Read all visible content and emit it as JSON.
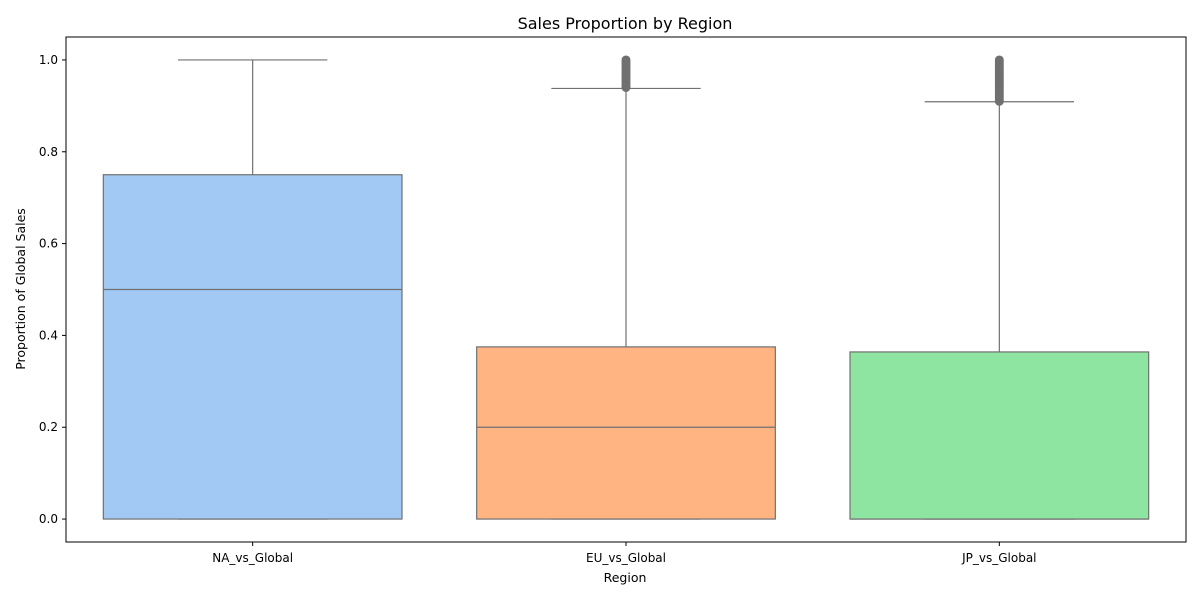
{
  "chart_data": {
    "type": "box",
    "title": "Sales Proportion by Region",
    "xlabel": "Region",
    "ylabel": "Proportion of Global Sales",
    "ylim": [
      -0.05,
      1.05
    ],
    "yticks": [
      0.0,
      0.2,
      0.4,
      0.6,
      0.8,
      1.0
    ],
    "ytick_labels": [
      "0.0",
      "0.2",
      "0.4",
      "0.6",
      "0.8",
      "1.0"
    ],
    "categories": [
      "NA_vs_Global",
      "EU_vs_Global",
      "JP_vs_Global"
    ],
    "grid": false,
    "colors": {
      "NA_vs_Global": "#a1c9f4",
      "EU_vs_Global": "#ffb482",
      "JP_vs_Global": "#8de5a1",
      "box_edge": "#707070",
      "axis": "#000000"
    },
    "boxes": [
      {
        "category": "NA_vs_Global",
        "whisker_low": 0.0,
        "q1": 0.0,
        "median": 0.5,
        "q3": 0.75,
        "whisker_high": 1.0,
        "outliers": []
      },
      {
        "category": "EU_vs_Global",
        "whisker_low": 0.0,
        "q1": 0.0,
        "median": 0.2,
        "q3": 0.375,
        "whisker_high": 0.938,
        "outliers": [
          0.94,
          0.945,
          0.95,
          0.955,
          0.96,
          0.965,
          0.97,
          0.975,
          0.98,
          0.985,
          0.99,
          0.995,
          1.0
        ]
      },
      {
        "category": "JP_vs_Global",
        "whisker_low": 0.0,
        "q1": 0.0,
        "median": 0.0,
        "q3": 0.364,
        "whisker_high": 0.909,
        "outliers": [
          0.91,
          0.915,
          0.92,
          0.925,
          0.93,
          0.935,
          0.94,
          0.945,
          0.95,
          0.955,
          0.96,
          0.965,
          0.97,
          0.975,
          0.98,
          0.985,
          0.99,
          0.995,
          1.0
        ]
      }
    ]
  }
}
